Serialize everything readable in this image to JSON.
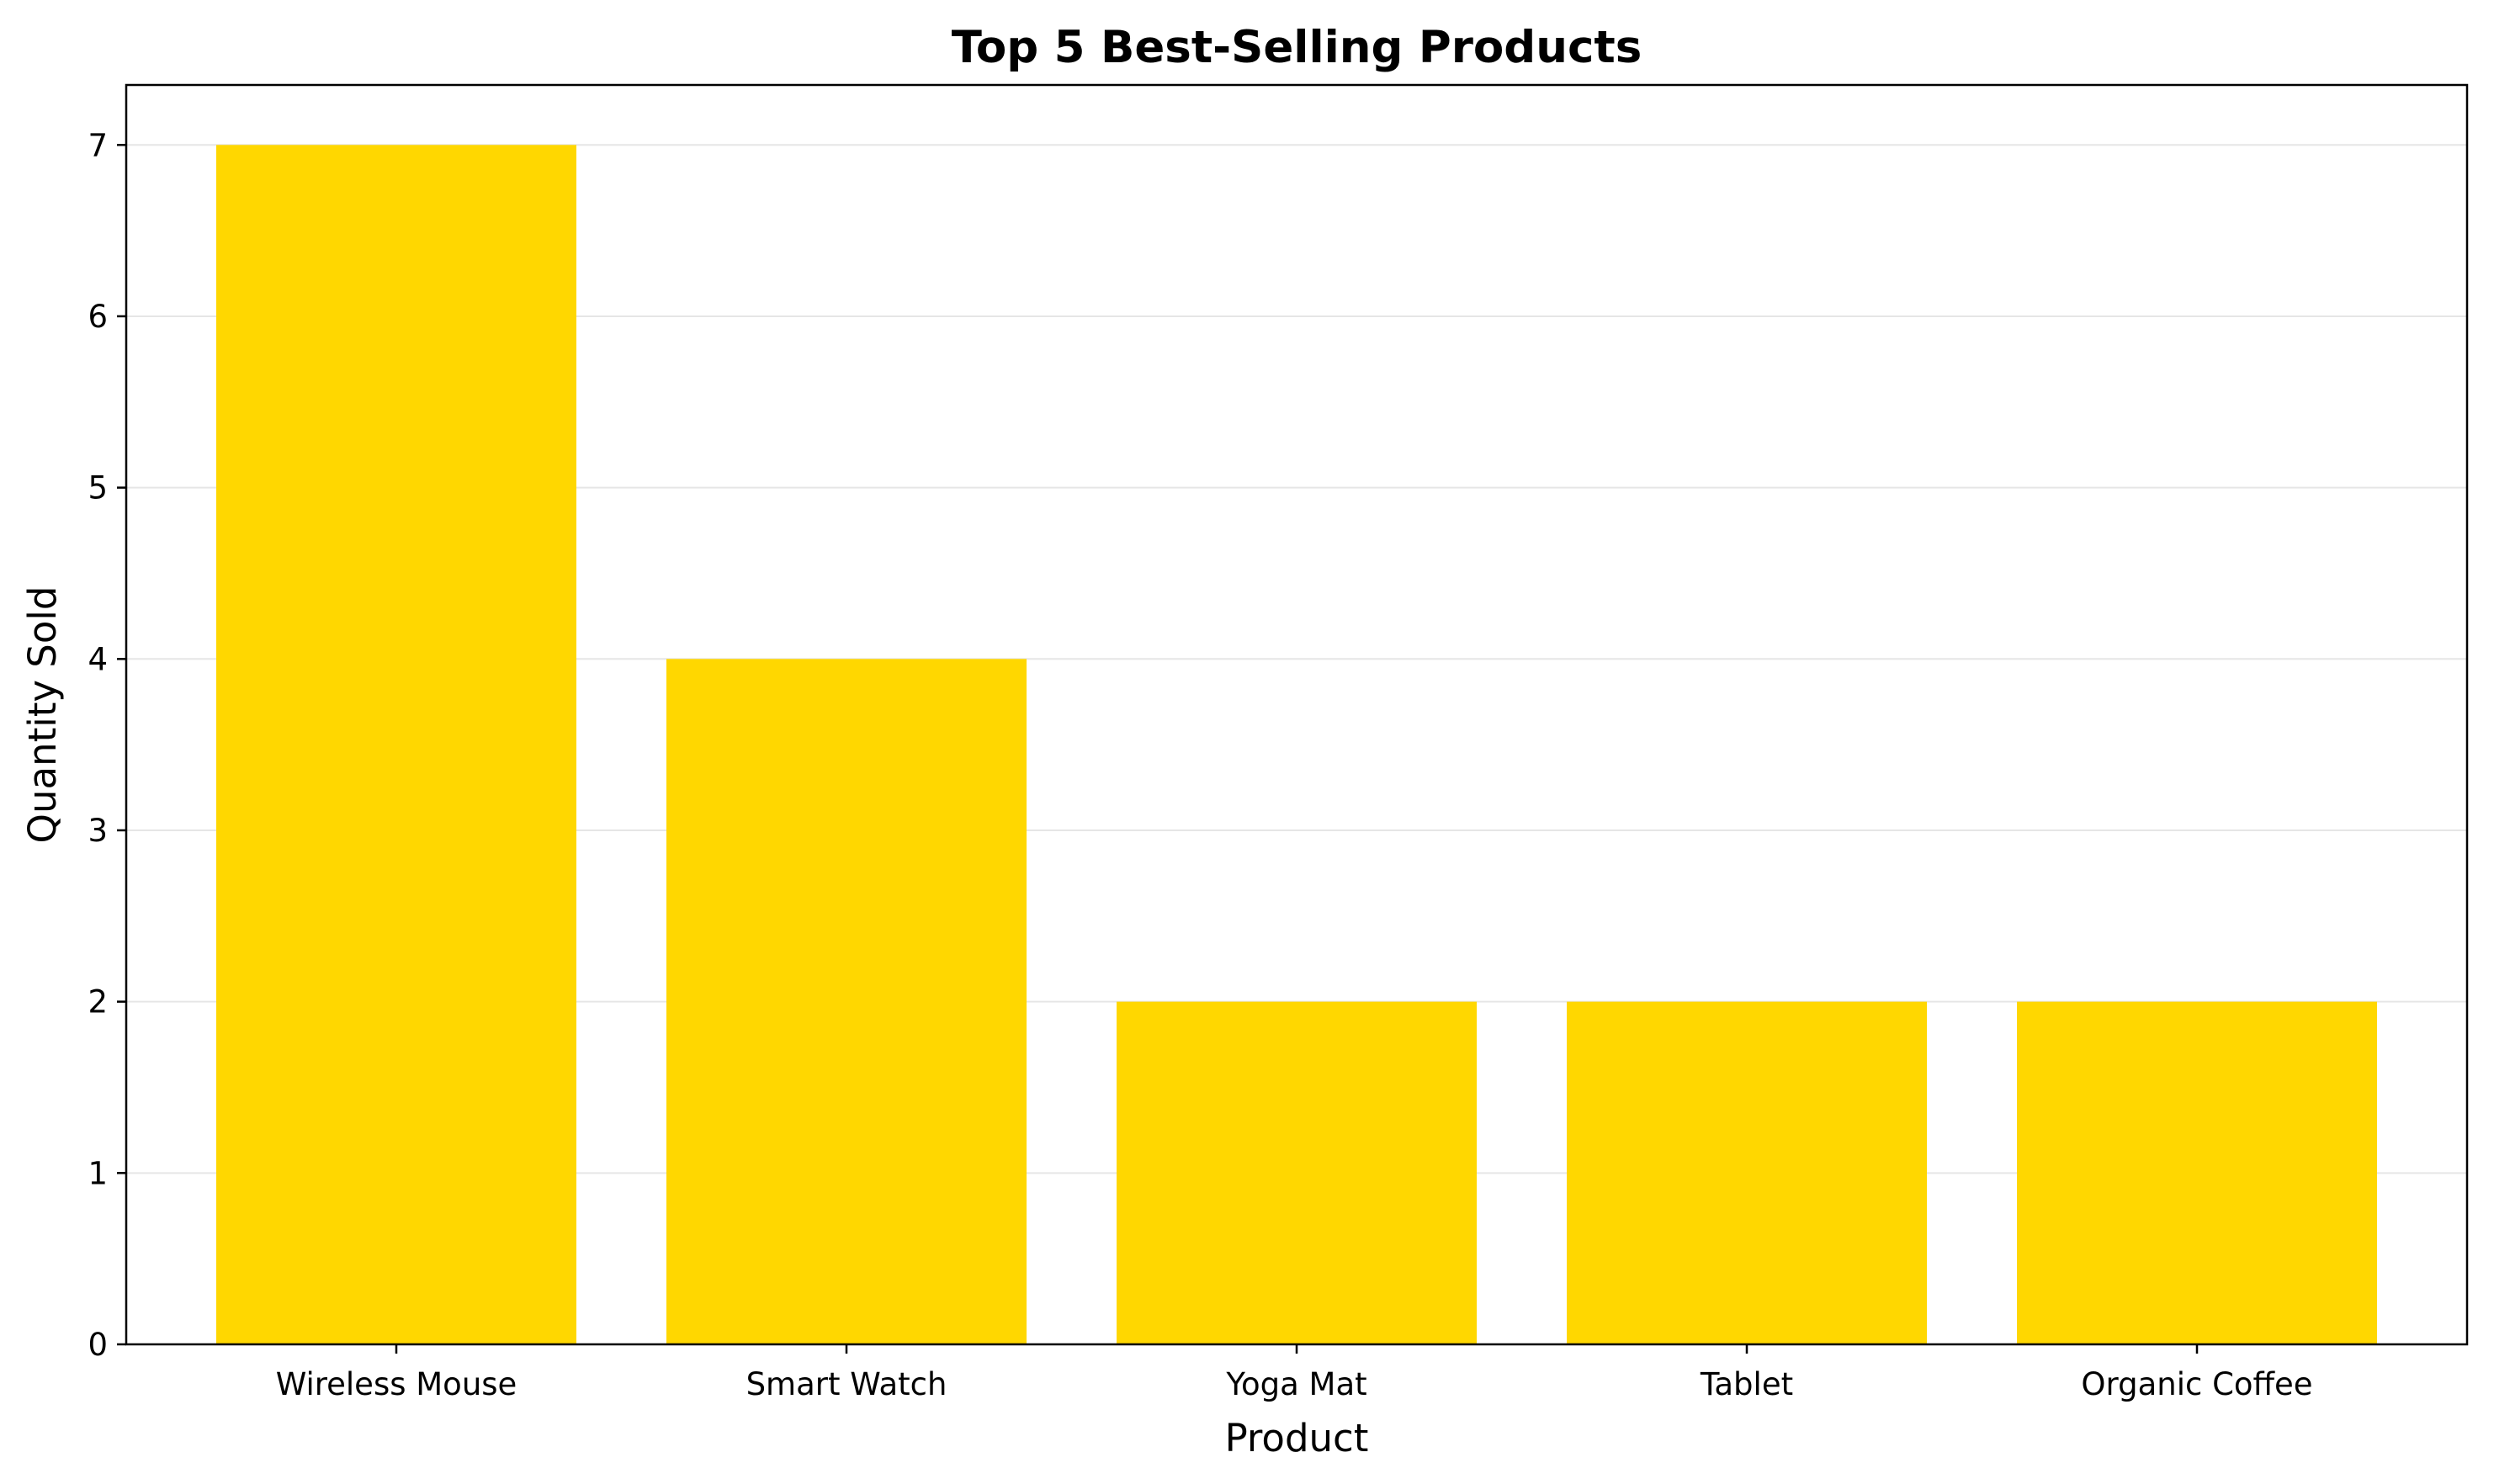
{
  "chart_data": {
    "type": "bar",
    "title": "Top 5 Best-Selling Products",
    "xlabel": "Product",
    "ylabel": "Quantity Sold",
    "categories": [
      "Wireless Mouse",
      "Smart Watch",
      "Yoga Mat",
      "Tablet",
      "Organic Coffee"
    ],
    "values": [
      7,
      4,
      2,
      2,
      2
    ],
    "ylim": [
      0,
      7.35
    ],
    "yticks": [
      0,
      1,
      2,
      3,
      4,
      5,
      6,
      7
    ],
    "grid": "horizontal",
    "legend": "none",
    "bar_color": "#FFD700",
    "grid_color": "#E6E6E6"
  }
}
